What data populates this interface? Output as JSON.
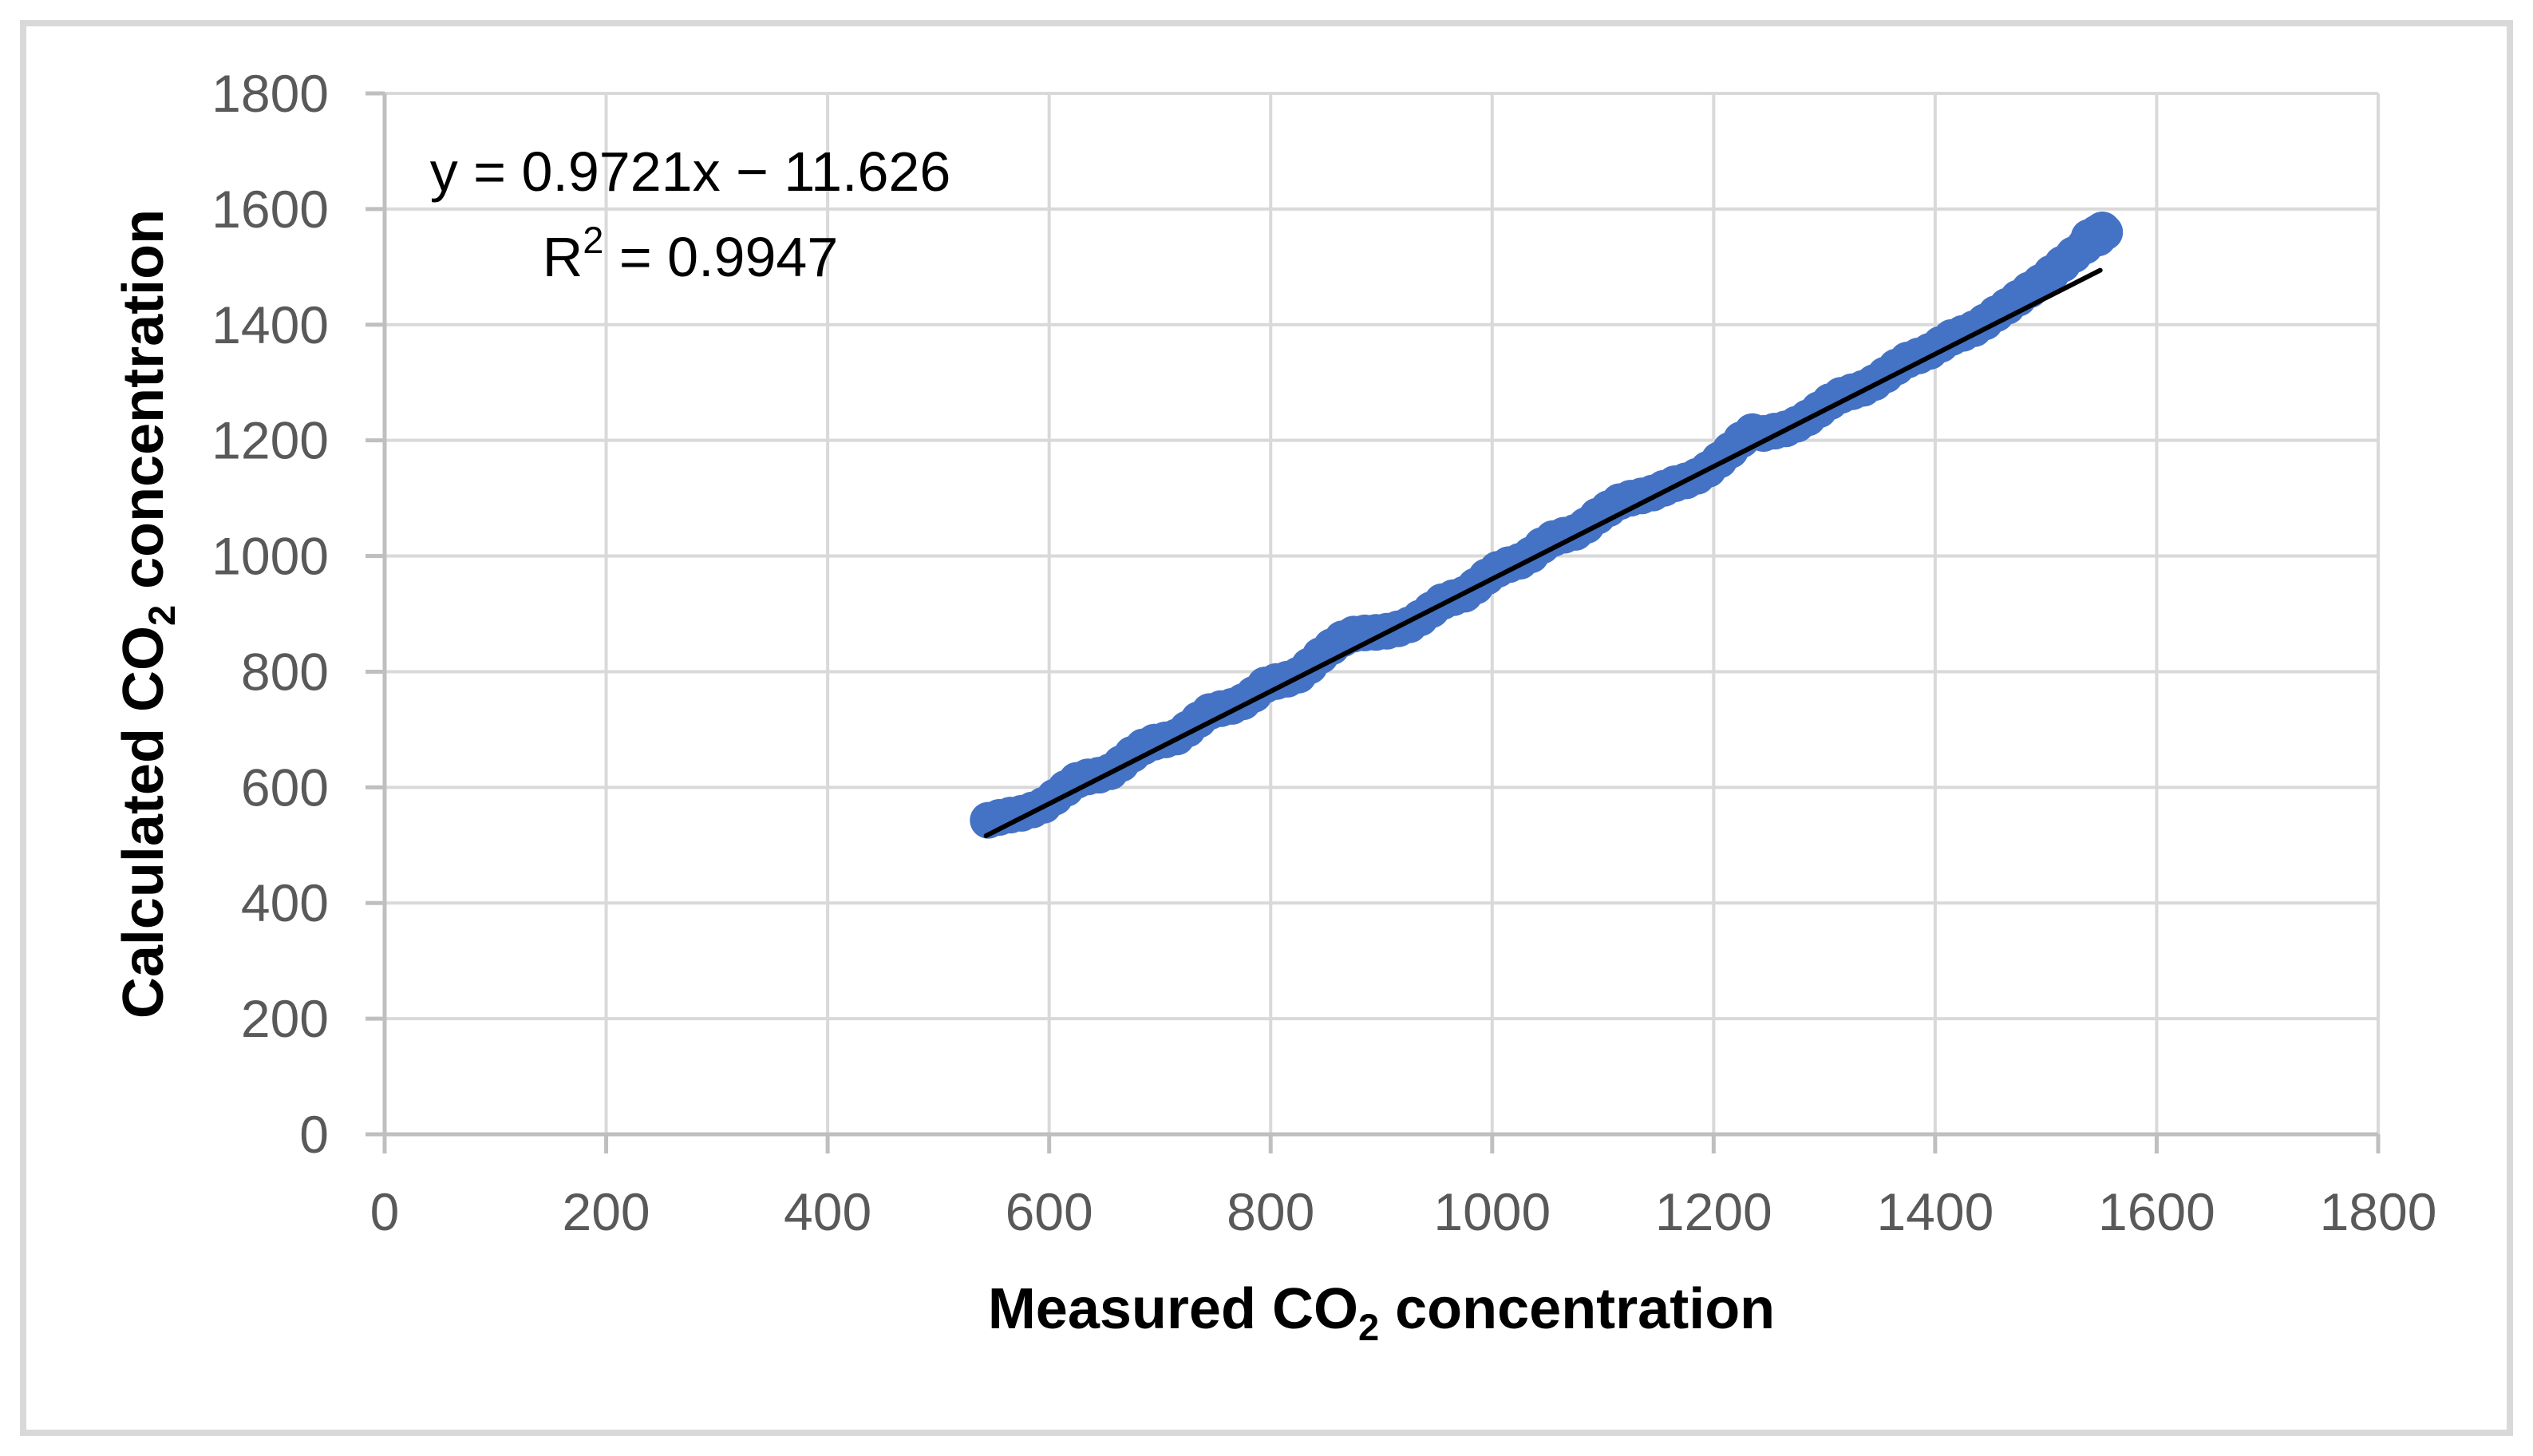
{
  "chart_data": {
    "type": "scatter",
    "title": "",
    "xlabel_parts": [
      {
        "t": "Measured CO"
      },
      {
        "t": "2",
        "sub": true
      },
      {
        "t": " concentration"
      }
    ],
    "ylabel_parts": [
      {
        "t": "Calculated CO"
      },
      {
        "t": "2",
        "sub": true
      },
      {
        "t": " concentration"
      }
    ],
    "annotation_line1": "y = 0.9721x − 11.626",
    "annotation_line2_parts": [
      {
        "t": "R"
      },
      {
        "t": "2",
        "sup": true
      },
      {
        "t": " = 0.9947"
      }
    ],
    "xlim": [
      0,
      1800
    ],
    "ylim": [
      0,
      1800
    ],
    "xticks": [
      0,
      200,
      400,
      600,
      800,
      1000,
      1200,
      1400,
      1600,
      1800
    ],
    "yticks": [
      0,
      200,
      400,
      600,
      800,
      1000,
      1200,
      1400,
      1600,
      1800
    ],
    "grid": true,
    "legend": "none",
    "trendline": {
      "slope": 0.9721,
      "intercept": -11.626,
      "x_start": 543,
      "x_end": 1549
    },
    "points": [
      [
        545,
        543
      ],
      [
        555,
        548
      ],
      [
        565,
        552
      ],
      [
        575,
        555
      ],
      [
        585,
        561
      ],
      [
        595,
        569
      ],
      [
        605,
        583
      ],
      [
        615,
        598
      ],
      [
        625,
        612
      ],
      [
        635,
        618
      ],
      [
        645,
        621
      ],
      [
        655,
        627
      ],
      [
        665,
        641
      ],
      [
        675,
        657
      ],
      [
        685,
        670
      ],
      [
        695,
        678
      ],
      [
        705,
        682
      ],
      [
        715,
        687
      ],
      [
        725,
        701
      ],
      [
        735,
        717
      ],
      [
        745,
        731
      ],
      [
        755,
        736
      ],
      [
        765,
        740
      ],
      [
        775,
        748
      ],
      [
        785,
        761
      ],
      [
        795,
        777
      ],
      [
        805,
        783
      ],
      [
        815,
        787
      ],
      [
        825,
        794
      ],
      [
        835,
        810
      ],
      [
        845,
        828
      ],
      [
        855,
        843
      ],
      [
        865,
        857
      ],
      [
        875,
        865
      ],
      [
        885,
        867
      ],
      [
        895,
        868
      ],
      [
        905,
        870
      ],
      [
        915,
        874
      ],
      [
        925,
        881
      ],
      [
        935,
        893
      ],
      [
        945,
        907
      ],
      [
        955,
        921
      ],
      [
        965,
        928
      ],
      [
        975,
        934
      ],
      [
        985,
        948
      ],
      [
        995,
        964
      ],
      [
        1005,
        977
      ],
      [
        1015,
        985
      ],
      [
        1025,
        991
      ],
      [
        1035,
        1002
      ],
      [
        1045,
        1018
      ],
      [
        1055,
        1030
      ],
      [
        1065,
        1036
      ],
      [
        1075,
        1041
      ],
      [
        1085,
        1053
      ],
      [
        1095,
        1069
      ],
      [
        1105,
        1082
      ],
      [
        1115,
        1094
      ],
      [
        1125,
        1100
      ],
      [
        1135,
        1104
      ],
      [
        1145,
        1109
      ],
      [
        1155,
        1117
      ],
      [
        1165,
        1125
      ],
      [
        1175,
        1130
      ],
      [
        1185,
        1138
      ],
      [
        1195,
        1150
      ],
      [
        1205,
        1166
      ],
      [
        1215,
        1183
      ],
      [
        1225,
        1201
      ],
      [
        1235,
        1215
      ],
      [
        1245,
        1212
      ],
      [
        1255,
        1216
      ],
      [
        1265,
        1220
      ],
      [
        1275,
        1228
      ],
      [
        1285,
        1239
      ],
      [
        1295,
        1253
      ],
      [
        1305,
        1267
      ],
      [
        1315,
        1278
      ],
      [
        1325,
        1284
      ],
      [
        1335,
        1290
      ],
      [
        1345,
        1300
      ],
      [
        1355,
        1313
      ],
      [
        1365,
        1327
      ],
      [
        1375,
        1339
      ],
      [
        1385,
        1346
      ],
      [
        1395,
        1354
      ],
      [
        1405,
        1366
      ],
      [
        1415,
        1378
      ],
      [
        1425,
        1385
      ],
      [
        1435,
        1393
      ],
      [
        1445,
        1405
      ],
      [
        1455,
        1419
      ],
      [
        1465,
        1432
      ],
      [
        1475,
        1446
      ],
      [
        1485,
        1460
      ],
      [
        1495,
        1473
      ],
      [
        1505,
        1489
      ],
      [
        1515,
        1505
      ],
      [
        1525,
        1521
      ],
      [
        1535,
        1536
      ],
      [
        1545,
        1550
      ],
      [
        1539,
        1551
      ],
      [
        1546,
        1558
      ],
      [
        1551,
        1564
      ],
      [
        1553,
        1560
      ],
      [
        1547,
        1550
      ]
    ],
    "colors": {
      "point": "#4472C4",
      "trendline": "#000000",
      "gridline": "#D9D9D9",
      "axis": "#BFBFBF",
      "tick_label": "#595959",
      "text": "#000000",
      "frame": "#D9D9D9",
      "background": "#FFFFFF"
    }
  }
}
